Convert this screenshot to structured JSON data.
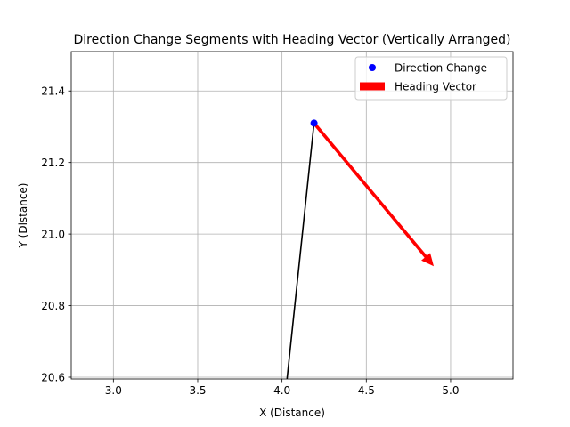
{
  "chart_data": {
    "type": "scatter",
    "title": "Direction Change Segments with Heading Vector (Vertically Arranged)",
    "xlabel": "X (Distance)",
    "ylabel": "Y (Distance)",
    "xlim": [
      2.75,
      5.37
    ],
    "ylim": [
      20.595,
      21.51
    ],
    "xticks": [
      3.0,
      3.5,
      4.0,
      4.5,
      5.0
    ],
    "xtick_labels": [
      "3.0",
      "3.5",
      "4.0",
      "4.5",
      "5.0"
    ],
    "yticks": [
      20.6,
      20.8,
      21.0,
      21.2,
      21.4
    ],
    "ytick_labels": [
      "20.6",
      "20.8",
      "21.0",
      "21.2",
      "21.4"
    ],
    "grid": true,
    "legend_position": "top-right",
    "segment": {
      "x": [
        4.03,
        4.19
      ],
      "y": [
        20.595,
        21.31
      ],
      "color": "#000000"
    },
    "point": {
      "name": "Direction Change",
      "x": 4.19,
      "y": 21.31,
      "color": "#0000ff"
    },
    "vector": {
      "name": "Heading Vector",
      "x0": 4.19,
      "y0": 21.31,
      "x1": 4.9,
      "y1": 20.91,
      "color": "#ff0000"
    },
    "legend": [
      {
        "label": "Direction Change",
        "marker": "dot",
        "color": "#0000ff"
      },
      {
        "label": "Heading Vector",
        "marker": "patch",
        "color": "#ff0000"
      }
    ]
  }
}
